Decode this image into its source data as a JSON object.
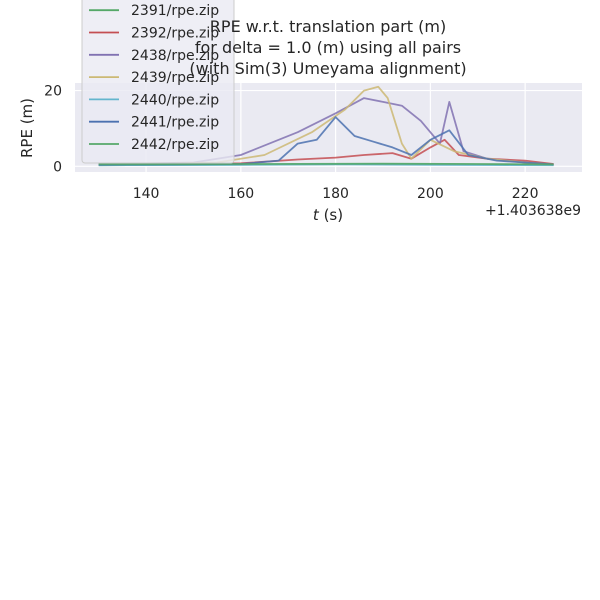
{
  "chart_data": {
    "type": "line",
    "title_lines": [
      "RPE w.r.t. translation part (m)",
      "for delta = 1.0 (m) using all pairs",
      "(with Sim(3) Umeyama alignment)"
    ],
    "xlabel_italic": "t",
    "xlabel_rest": " (s)",
    "ylabel": "RPE (m)",
    "x_offset_label": "+1.403638e9",
    "xlim": [
      125,
      232
    ],
    "ylim": [
      -1.5,
      22
    ],
    "xticks": [
      140,
      160,
      180,
      200,
      220
    ],
    "yticks": [
      0,
      20
    ],
    "grid": true,
    "legend_position": "top-left",
    "series": [
      {
        "name": "2391/rpe.zip",
        "color": "#55a868",
        "x": [
          130,
          150,
          170,
          190,
          210,
          226
        ],
        "y": [
          0.3,
          0.4,
          0.5,
          0.6,
          0.5,
          0.4
        ]
      },
      {
        "name": "2392/rpe.zip",
        "color": "#c44e52",
        "x": [
          130,
          160,
          172,
          180,
          186,
          192,
          196,
          200,
          203,
          206,
          212,
          220,
          226
        ],
        "y": [
          0.5,
          0.8,
          1.8,
          2.3,
          3.0,
          3.5,
          2.0,
          5.0,
          7.0,
          3.0,
          2.0,
          1.5,
          0.6
        ]
      },
      {
        "name": "2438/rpe.zip",
        "color": "#8172b2",
        "x": [
          130,
          150,
          160,
          172,
          180,
          186,
          190,
          194,
          198,
          202,
          204,
          207,
          212,
          220,
          226
        ],
        "y": [
          0.5,
          1.0,
          3.0,
          9.0,
          14.0,
          18.0,
          17.0,
          16.0,
          12.0,
          6.0,
          17.0,
          4.0,
          2.0,
          1.0,
          0.4
        ]
      },
      {
        "name": "2439/rpe.zip",
        "color": "#ccb974",
        "x": [
          130,
          155,
          165,
          175,
          182,
          186,
          189,
          191,
          194,
          196,
          200,
          205,
          212,
          220,
          226
        ],
        "y": [
          0.4,
          1.0,
          3.0,
          9.0,
          15.0,
          20.0,
          21.0,
          18.0,
          6.0,
          2.0,
          7.0,
          4.0,
          2.0,
          1.0,
          0.4
        ]
      },
      {
        "name": "2440/rpe.zip",
        "color": "#64b5cd",
        "x": [
          130,
          160,
          180,
          200,
          226
        ],
        "y": [
          0.3,
          0.4,
          0.5,
          0.4,
          0.3
        ]
      },
      {
        "name": "2441/rpe.zip",
        "color": "#4c72b0",
        "x": [
          130,
          160,
          168,
          172,
          176,
          180,
          184,
          188,
          192,
          196,
          200,
          204,
          208,
          214,
          220,
          226
        ],
        "y": [
          0.4,
          0.6,
          1.5,
          6.0,
          7.0,
          13.0,
          8.0,
          6.5,
          5.0,
          3.0,
          7.0,
          9.5,
          3.0,
          1.5,
          1.0,
          0.5
        ]
      },
      {
        "name": "2442/rpe.zip",
        "color": "#55a868",
        "x": [
          130,
          160,
          190,
          210,
          226
        ],
        "y": [
          0.5,
          0.6,
          0.7,
          0.6,
          0.5
        ]
      }
    ]
  }
}
